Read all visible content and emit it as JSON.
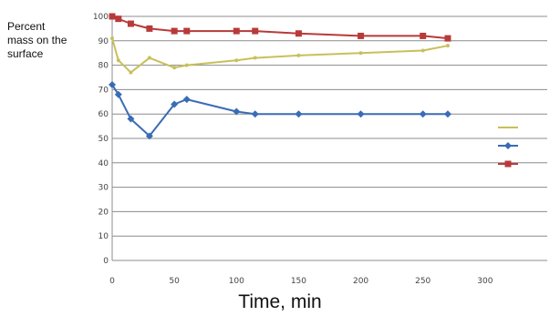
{
  "chart_data": {
    "type": "line",
    "title": "",
    "ylabel": "Percent mass on the surface",
    "xlabel": "Time, min",
    "xlim": [
      0,
      350
    ],
    "ylim": [
      0,
      100
    ],
    "x_ticks": [
      0,
      50,
      100,
      150,
      200,
      250,
      300
    ],
    "y_ticks": [
      0,
      10,
      20,
      30,
      40,
      50,
      60,
      70,
      80,
      90,
      100
    ],
    "grid": "horizontal",
    "legend_position": "right",
    "series": [
      {
        "name": "",
        "color": "#c8c05a",
        "marker": "dot",
        "x": [
          0,
          5,
          15,
          30,
          50,
          60,
          100,
          115,
          150,
          200,
          250,
          270
        ],
        "y": [
          91,
          82,
          77,
          83,
          79,
          80,
          82,
          83,
          84,
          85,
          86,
          88
        ]
      },
      {
        "name": "",
        "color": "#3a6cb5",
        "marker": "diamond",
        "x": [
          0,
          5,
          15,
          30,
          50,
          60,
          100,
          115,
          150,
          200,
          250,
          270
        ],
        "y": [
          72,
          68,
          58,
          51,
          64,
          66,
          61,
          60,
          60,
          60,
          60,
          60
        ]
      },
      {
        "name": "",
        "color": "#b83a3a",
        "marker": "square",
        "x": [
          0,
          5,
          15,
          30,
          50,
          60,
          100,
          115,
          150,
          200,
          250,
          270
        ],
        "y": [
          100,
          99,
          97,
          95,
          94,
          94,
          94,
          94,
          93,
          92,
          92,
          91
        ]
      }
    ]
  }
}
